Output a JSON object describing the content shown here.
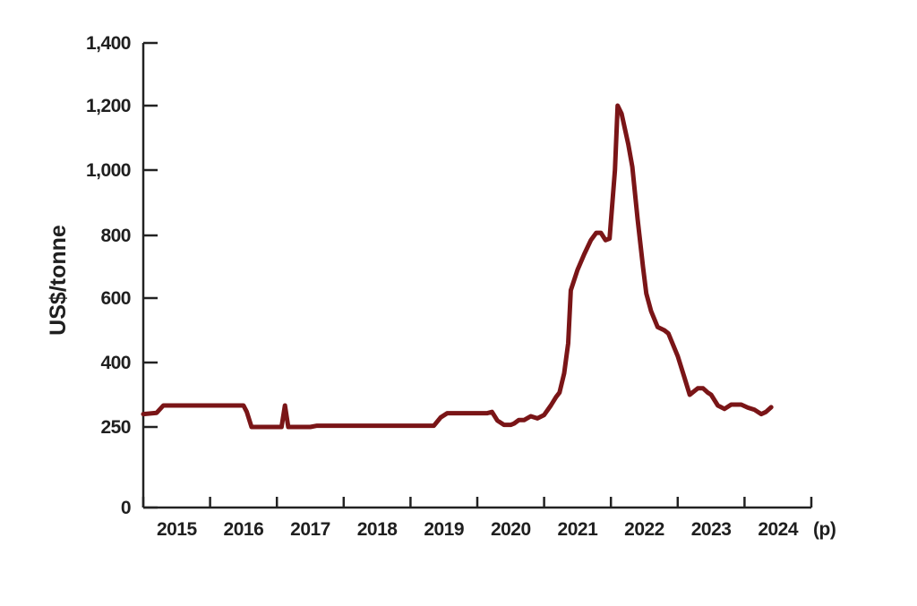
{
  "chart_data": {
    "type": "line",
    "title": "",
    "xlabel": "",
    "ylabel": "US$/tonne",
    "x_tick_labels": [
      "2015",
      "2016",
      "2017",
      "2018",
      "2019",
      "2020",
      "2021",
      "2022",
      "2023",
      "2024"
    ],
    "x_suffix_label": "(p)",
    "y_tick_labels": [
      "0",
      "250",
      "400",
      "600",
      "800",
      "1,000",
      "1,200",
      "1,400"
    ],
    "xlim": [
      2014.5,
      2024.5
    ],
    "line_color": "#7a1517",
    "axis_color": "#222222",
    "grid": false,
    "legend": "none",
    "series": [
      {
        "points": [
          {
            "x": 2014.5,
            "y": 280
          },
          {
            "x": 2014.7,
            "y": 283
          },
          {
            "x": 2014.8,
            "y": 300
          },
          {
            "x": 2015.0,
            "y": 300
          },
          {
            "x": 2015.5,
            "y": 300
          },
          {
            "x": 2015.9,
            "y": 300
          },
          {
            "x": 2016.0,
            "y": 300
          },
          {
            "x": 2016.05,
            "y": 285
          },
          {
            "x": 2016.12,
            "y": 250
          },
          {
            "x": 2016.3,
            "y": 250
          },
          {
            "x": 2016.5,
            "y": 250
          },
          {
            "x": 2016.57,
            "y": 250
          },
          {
            "x": 2016.62,
            "y": 300
          },
          {
            "x": 2016.67,
            "y": 250
          },
          {
            "x": 2016.9,
            "y": 250
          },
          {
            "x": 2017.0,
            "y": 250
          },
          {
            "x": 2017.1,
            "y": 253
          },
          {
            "x": 2017.5,
            "y": 253
          },
          {
            "x": 2018.0,
            "y": 253
          },
          {
            "x": 2018.5,
            "y": 253
          },
          {
            "x": 2018.85,
            "y": 253
          },
          {
            "x": 2018.95,
            "y": 272
          },
          {
            "x": 2019.05,
            "y": 282
          },
          {
            "x": 2019.3,
            "y": 282
          },
          {
            "x": 2019.55,
            "y": 282
          },
          {
            "x": 2019.65,
            "y": 282
          },
          {
            "x": 2019.72,
            "y": 285
          },
          {
            "x": 2019.8,
            "y": 265
          },
          {
            "x": 2019.9,
            "y": 255
          },
          {
            "x": 2020.0,
            "y": 255
          },
          {
            "x": 2020.05,
            "y": 258
          },
          {
            "x": 2020.12,
            "y": 266
          },
          {
            "x": 2020.2,
            "y": 266
          },
          {
            "x": 2020.3,
            "y": 275
          },
          {
            "x": 2020.4,
            "y": 270
          },
          {
            "x": 2020.5,
            "y": 278
          },
          {
            "x": 2020.6,
            "y": 300
          },
          {
            "x": 2020.68,
            "y": 320
          },
          {
            "x": 2020.73,
            "y": 330
          },
          {
            "x": 2020.8,
            "y": 375
          },
          {
            "x": 2020.86,
            "y": 460
          },
          {
            "x": 2020.9,
            "y": 625
          },
          {
            "x": 2021.0,
            "y": 690
          },
          {
            "x": 2021.1,
            "y": 740
          },
          {
            "x": 2021.2,
            "y": 785
          },
          {
            "x": 2021.28,
            "y": 808
          },
          {
            "x": 2021.35,
            "y": 808
          },
          {
            "x": 2021.42,
            "y": 785
          },
          {
            "x": 2021.48,
            "y": 790
          },
          {
            "x": 2021.56,
            "y": 1000
          },
          {
            "x": 2021.6,
            "y": 1200
          },
          {
            "x": 2021.66,
            "y": 1175
          },
          {
            "x": 2021.76,
            "y": 1080
          },
          {
            "x": 2021.82,
            "y": 1010
          },
          {
            "x": 2021.9,
            "y": 850
          },
          {
            "x": 2021.98,
            "y": 700
          },
          {
            "x": 2022.03,
            "y": 615
          },
          {
            "x": 2022.1,
            "y": 560
          },
          {
            "x": 2022.2,
            "y": 510
          },
          {
            "x": 2022.3,
            "y": 500
          },
          {
            "x": 2022.36,
            "y": 490
          },
          {
            "x": 2022.5,
            "y": 420
          },
          {
            "x": 2022.6,
            "y": 365
          },
          {
            "x": 2022.68,
            "y": 325
          },
          {
            "x": 2022.8,
            "y": 340
          },
          {
            "x": 2022.88,
            "y": 340
          },
          {
            "x": 2022.95,
            "y": 330
          },
          {
            "x": 2023.0,
            "y": 325
          },
          {
            "x": 2023.1,
            "y": 300
          },
          {
            "x": 2023.2,
            "y": 292
          },
          {
            "x": 2023.3,
            "y": 302
          },
          {
            "x": 2023.38,
            "y": 302
          },
          {
            "x": 2023.45,
            "y": 302
          },
          {
            "x": 2023.55,
            "y": 295
          },
          {
            "x": 2023.65,
            "y": 290
          },
          {
            "x": 2023.75,
            "y": 280
          },
          {
            "x": 2023.82,
            "y": 285
          },
          {
            "x": 2023.9,
            "y": 296
          }
        ]
      }
    ]
  }
}
